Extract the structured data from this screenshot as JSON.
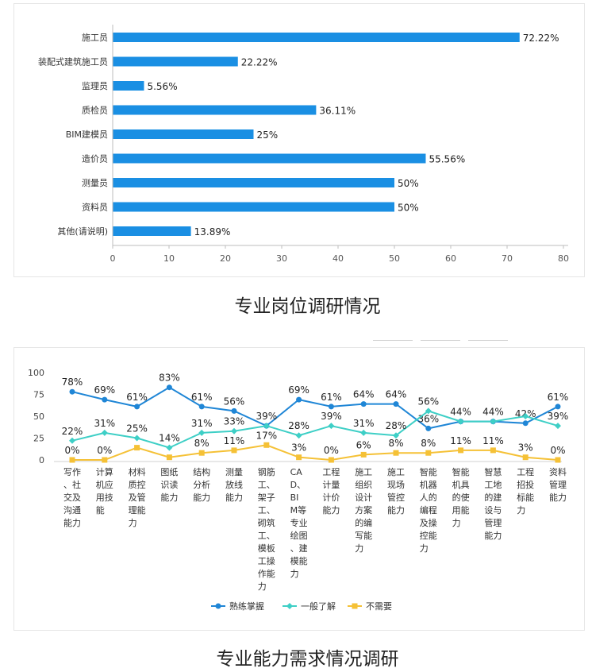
{
  "figure1": {
    "caption": "专业岗位调研情况",
    "chart_data": {
      "type": "bar",
      "orientation": "horizontal",
      "categories": [
        "施工员",
        "装配式建筑施工员",
        "监理员",
        "质检员",
        "BIM建模员",
        "造价员",
        "测量员",
        "资料员",
        "其他(请说明)"
      ],
      "values": [
        72.22,
        22.22,
        5.56,
        36.11,
        25,
        55.56,
        50,
        50,
        13.89
      ],
      "data_labels": [
        "72.22%",
        "22.22%",
        "5.56%",
        "36.11%",
        "25%",
        "55.56%",
        "50%",
        "50%",
        "13.89%"
      ],
      "xlim": [
        0,
        80
      ],
      "xticks": [
        "0",
        "10",
        "20",
        "30",
        "40",
        "50",
        "60",
        "70",
        "80"
      ],
      "grid": false,
      "bar_color": "#1a8fe3"
    }
  },
  "figure2": {
    "caption": "专业能力需求情况调研",
    "chart_data": {
      "type": "line",
      "categories": [
        [
          "写作",
          "、社",
          "交及",
          "沟通",
          "能力"
        ],
        [
          "计算",
          "机应",
          "用技",
          "能"
        ],
        [
          "材料",
          "质控",
          "及管",
          "理能",
          "力"
        ],
        [
          "图纸",
          "识读",
          "能力"
        ],
        [
          "结构",
          "分析",
          "能力"
        ],
        [
          "测量",
          "放线",
          "能力"
        ],
        [
          "钢筋",
          "工、",
          "架子",
          "工、",
          "砌筑",
          "工、",
          "模板",
          "工操",
          "作能",
          "力"
        ],
        [
          "CA",
          "D、",
          "BI",
          "M等",
          "专业",
          "绘图",
          "、建",
          "模能",
          "力"
        ],
        [
          "工程",
          "计量",
          "计价",
          "能力"
        ],
        [
          "施工",
          "组织",
          "设计",
          "方案",
          "的编",
          "写能",
          "力"
        ],
        [
          "施工",
          "现场",
          "管控",
          "能力"
        ],
        [
          "智能",
          "机器",
          "人的",
          "编程",
          "及操",
          "控能",
          "力"
        ],
        [
          "智能",
          "机具",
          "的使",
          "用能",
          "力"
        ],
        [
          "智慧",
          "工地",
          "的建",
          "设与",
          "管理",
          "能力"
        ],
        [
          "工程",
          "招投",
          "标能",
          "力"
        ],
        [
          "资料",
          "管理",
          "能力"
        ]
      ],
      "ylim": [
        0,
        100
      ],
      "yticks": [
        "0",
        "25",
        "50",
        "75",
        "100"
      ],
      "grid": false,
      "legend_position": "bottom",
      "series": [
        {
          "name": "熟练掌握",
          "color": "#1f86d6",
          "marker": "circle",
          "values": [
            78,
            69,
            61,
            83,
            61,
            56,
            39,
            69,
            61,
            64,
            64,
            36,
            44,
            44,
            42,
            61
          ],
          "labels": [
            "78%",
            "69%",
            "61%",
            "83%",
            "61%",
            "56%",
            "",
            "69%",
            "61%",
            "64%",
            "64%",
            "36%",
            "44%",
            "44%",
            "42%",
            "61%"
          ]
        },
        {
          "name": "一般了解",
          "color": "#3ecfc6",
          "marker": "diamond",
          "values": [
            22,
            31,
            25,
            14,
            31,
            33,
            39,
            28,
            39,
            31,
            28,
            56,
            44,
            44,
            50,
            39
          ],
          "labels": [
            "22%",
            "31%",
            "25%",
            "14%",
            "31%",
            "33%",
            "39%",
            "28%",
            "39%",
            "31%",
            "28%",
            "56%",
            "",
            "",
            "",
            "39%"
          ]
        },
        {
          "name": "不需要",
          "color": "#f5c136",
          "marker": "square",
          "values": [
            0,
            0,
            14,
            3,
            8,
            11,
            17,
            3,
            0,
            6,
            8,
            8,
            11,
            11,
            3,
            0
          ],
          "labels": [
            "0%",
            "0%",
            "",
            "",
            "8%",
            "11%",
            "17%",
            "3%",
            "0%",
            "6%",
            "8%",
            "8%",
            "11%",
            "11%",
            "3%",
            "0%"
          ]
        }
      ]
    }
  }
}
